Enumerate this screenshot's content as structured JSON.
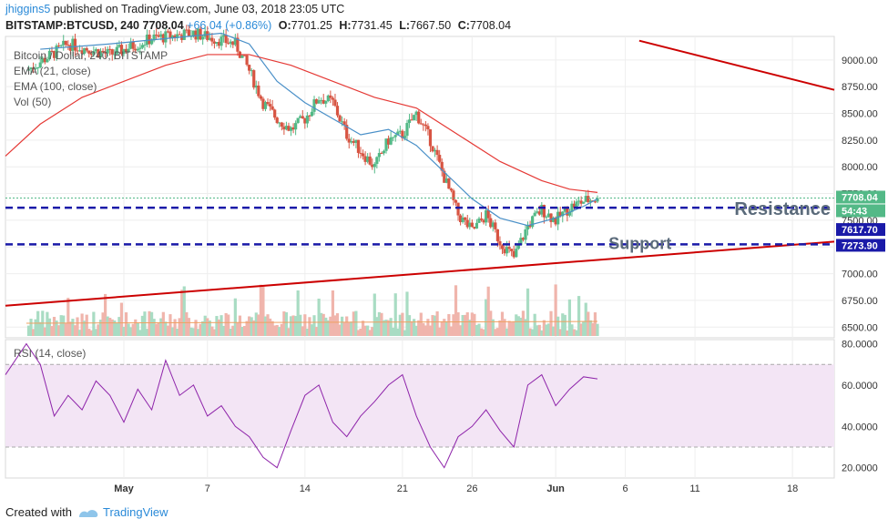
{
  "header": {
    "username": "jhiggins5",
    "published_text": "published on TradingView.com, June 03, 2018 23:05 UTC",
    "symbol": "BITSTAMP:BTCUSD, 240",
    "last": "7708.04",
    "change": "+66.04 (+0.86%)",
    "open_label": "O:",
    "open": "7701.25",
    "high_label": "H:",
    "high": "7731.45",
    "low_label": "L:",
    "low": "7667.50",
    "close_label": "C:",
    "close": "7708.04"
  },
  "legend": {
    "title": "Bitcoin / Dollar, 240, BITSTAMP",
    "ema21": "EMA (21, close)",
    "ema100": "EMA (100, close)",
    "vol": "Vol (50)"
  },
  "rsi_label": "RSI (14, close)",
  "annotations": {
    "resistance": "Resistance",
    "support": "Support"
  },
  "price_badges": {
    "last": "7708.04",
    "countdown": "54:43",
    "resistance": "7617.70",
    "support": "7273.90"
  },
  "footer": {
    "created_with": "Created with",
    "brand": "TradingView"
  },
  "colors": {
    "up": "#53b987",
    "down": "#d75442",
    "ema21": "#4a90c8",
    "ema100": "#e53935",
    "trendline": "#cc0000",
    "hline": "#1a1aa8",
    "rsi": "#8e24aa",
    "rsi_band": "#f3e5f5"
  },
  "chart_data": [
    {
      "type": "candlestick",
      "title": "Bitcoin / Dollar, 240, BITSTAMP",
      "x_ticks": [
        "May",
        "7",
        "14",
        "21",
        "26",
        "Jun",
        "6",
        "11",
        "18"
      ],
      "x_tick_days": [
        1,
        7,
        14,
        21,
        26,
        32,
        37,
        42,
        49
      ],
      "xlim_days": [
        -7.5,
        52
      ],
      "y_ticks": [
        6500,
        6750,
        7000,
        7250,
        7500,
        7750,
        8000,
        8250,
        8500,
        8750,
        9000
      ],
      "y_tick_labels": [
        "6500.00",
        "6750.00",
        "7000.00",
        "7250.00",
        "7500.00",
        "7750.00",
        "8000.00",
        "8250.00",
        "8500.00",
        "8750.00",
        "9000.00"
      ],
      "ylim": [
        6400,
        9220
      ],
      "horizontal_levels": [
        {
          "name": "Resistance",
          "value": 7617.7
        },
        {
          "name": "Support",
          "value": 7273.9
        }
      ],
      "last_price": 7708.04,
      "ema21_points": [
        [
          -5,
          9100
        ],
        [
          0,
          9150
        ],
        [
          4,
          9200
        ],
        [
          8,
          9250
        ],
        [
          10,
          9150
        ],
        [
          12,
          8800
        ],
        [
          14,
          8600
        ],
        [
          16,
          8450
        ],
        [
          18,
          8300
        ],
        [
          20,
          8350
        ],
        [
          22,
          8200
        ],
        [
          24,
          7950
        ],
        [
          26,
          7700
        ],
        [
          28,
          7520
        ],
        [
          30,
          7450
        ],
        [
          32,
          7520
        ],
        [
          34,
          7630
        ],
        [
          35,
          7700
        ]
      ],
      "ema100_points": [
        [
          -7.5,
          8100
        ],
        [
          -5,
          8400
        ],
        [
          -2,
          8650
        ],
        [
          1,
          8800
        ],
        [
          4,
          8950
        ],
        [
          7,
          9050
        ],
        [
          10,
          9050
        ],
        [
          13,
          8950
        ],
        [
          16,
          8800
        ],
        [
          19,
          8650
        ],
        [
          22,
          8550
        ],
        [
          25,
          8300
        ],
        [
          28,
          8050
        ],
        [
          31,
          7870
        ],
        [
          33,
          7790
        ],
        [
          35,
          7760
        ]
      ],
      "trendlines": [
        {
          "name": "rising support trend",
          "from": [
            -7.5,
            6700
          ],
          "to": [
            52,
            7300
          ]
        },
        {
          "name": "falling resistance trend",
          "from": [
            38,
            9180
          ],
          "to": [
            52,
            8720
          ]
        }
      ],
      "ohlc_keypoints": [
        {
          "day": -6,
          "close": 8900
        },
        {
          "day": -3,
          "close": 9150
        },
        {
          "day": 0,
          "close": 9050
        },
        {
          "day": 3,
          "close": 9200
        },
        {
          "day": 6,
          "close": 9250
        },
        {
          "day": 9,
          "close": 9150
        },
        {
          "day": 10,
          "close": 8900
        },
        {
          "day": 11,
          "close": 8600
        },
        {
          "day": 12,
          "close": 8450
        },
        {
          "day": 13,
          "close": 8350
        },
        {
          "day": 14,
          "close": 8450
        },
        {
          "day": 15,
          "close": 8650
        },
        {
          "day": 16,
          "close": 8600
        },
        {
          "day": 17,
          "close": 8300
        },
        {
          "day": 18,
          "close": 8150
        },
        {
          "day": 19,
          "close": 8000
        },
        {
          "day": 20,
          "close": 8250
        },
        {
          "day": 21,
          "close": 8300
        },
        {
          "day": 22,
          "close": 8500
        },
        {
          "day": 23,
          "close": 8250
        },
        {
          "day": 24,
          "close": 7900
        },
        {
          "day": 25,
          "close": 7550
        },
        {
          "day": 26,
          "close": 7400
        },
        {
          "day": 27,
          "close": 7550
        },
        {
          "day": 28,
          "close": 7300
        },
        {
          "day": 29,
          "close": 7150
        },
        {
          "day": 30,
          "close": 7450
        },
        {
          "day": 31,
          "close": 7600
        },
        {
          "day": 32,
          "close": 7500
        },
        {
          "day": 33,
          "close": 7620
        },
        {
          "day": 34,
          "close": 7680
        },
        {
          "day": 35,
          "close": 7708
        }
      ]
    },
    {
      "type": "bar",
      "title": "Vol (50)",
      "note": "volume histogram, unlabelled axis"
    },
    {
      "type": "line",
      "title": "RSI (14, close)",
      "y_ticks": [
        20,
        40,
        60,
        80
      ],
      "y_tick_labels": [
        "20.0000",
        "40.0000",
        "60.0000",
        "80.0000"
      ],
      "ylim": [
        15,
        82
      ],
      "band": [
        30,
        70
      ],
      "points": [
        [
          -7.5,
          65
        ],
        [
          -6,
          80
        ],
        [
          -5,
          70
        ],
        [
          -4,
          45
        ],
        [
          -3,
          55
        ],
        [
          -2,
          48
        ],
        [
          -1,
          62
        ],
        [
          0,
          55
        ],
        [
          1,
          42
        ],
        [
          2,
          58
        ],
        [
          3,
          48
        ],
        [
          4,
          72
        ],
        [
          5,
          55
        ],
        [
          6,
          60
        ],
        [
          7,
          45
        ],
        [
          8,
          50
        ],
        [
          9,
          40
        ],
        [
          10,
          35
        ],
        [
          11,
          25
        ],
        [
          12,
          20
        ],
        [
          13,
          38
        ],
        [
          14,
          55
        ],
        [
          15,
          60
        ],
        [
          16,
          42
        ],
        [
          17,
          35
        ],
        [
          18,
          45
        ],
        [
          19,
          52
        ],
        [
          20,
          60
        ],
        [
          21,
          65
        ],
        [
          22,
          45
        ],
        [
          23,
          30
        ],
        [
          24,
          20
        ],
        [
          25,
          35
        ],
        [
          26,
          40
        ],
        [
          27,
          48
        ],
        [
          28,
          38
        ],
        [
          29,
          30
        ],
        [
          30,
          60
        ],
        [
          31,
          65
        ],
        [
          32,
          50
        ],
        [
          33,
          58
        ],
        [
          34,
          64
        ],
        [
          35,
          63
        ]
      ]
    }
  ]
}
